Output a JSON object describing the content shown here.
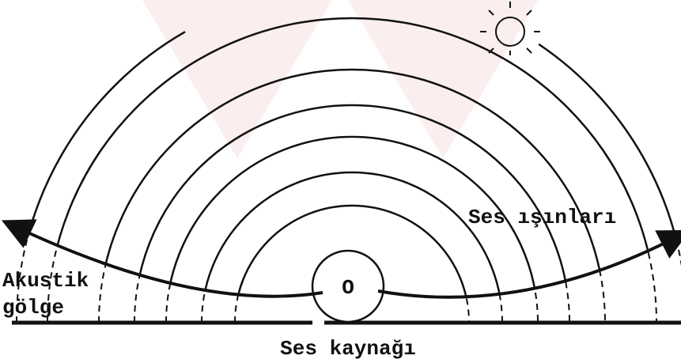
{
  "labels": {
    "rays": "Ses ışınları",
    "shadow_line1": "Akustik",
    "shadow_line2": "gölge",
    "source": "Ses kaynağı",
    "center": "O"
  }
}
